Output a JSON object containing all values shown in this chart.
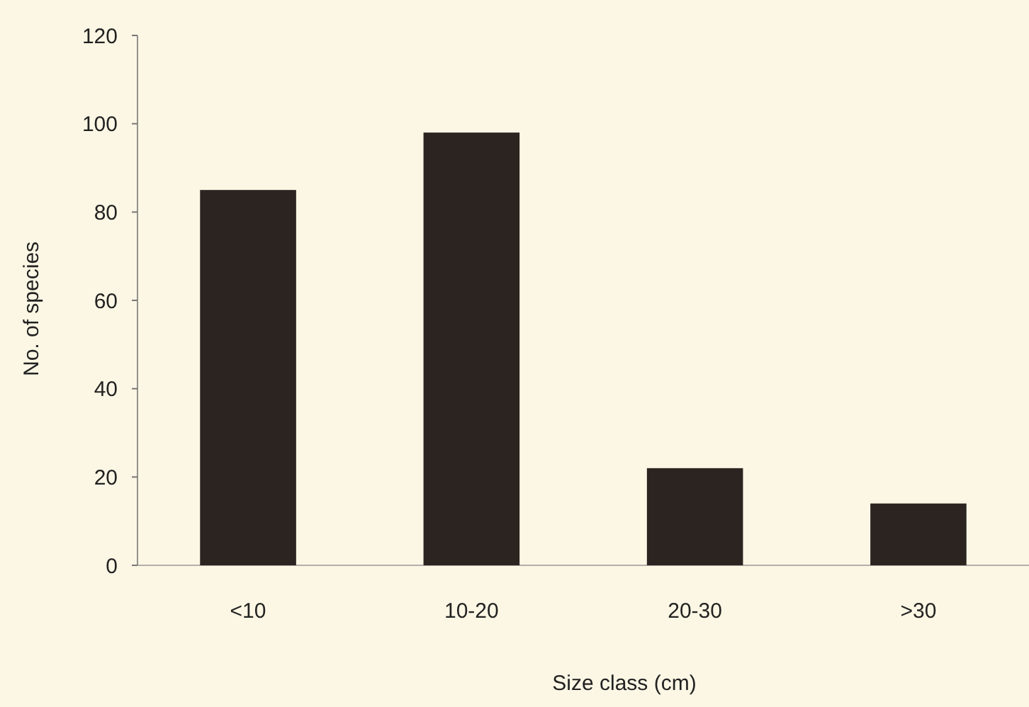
{
  "chart_data": {
    "type": "bar",
    "xlabel": "Size class (cm)",
    "ylabel": "No. of species",
    "categories": [
      "<10",
      "10-20",
      "20-30",
      ">30"
    ],
    "values": [
      85,
      98,
      22,
      14
    ],
    "color": "#2b2421",
    "ylim": [
      0,
      120
    ],
    "yticks": [
      0,
      20,
      40,
      60,
      80,
      100,
      120
    ],
    "grid": false
  }
}
